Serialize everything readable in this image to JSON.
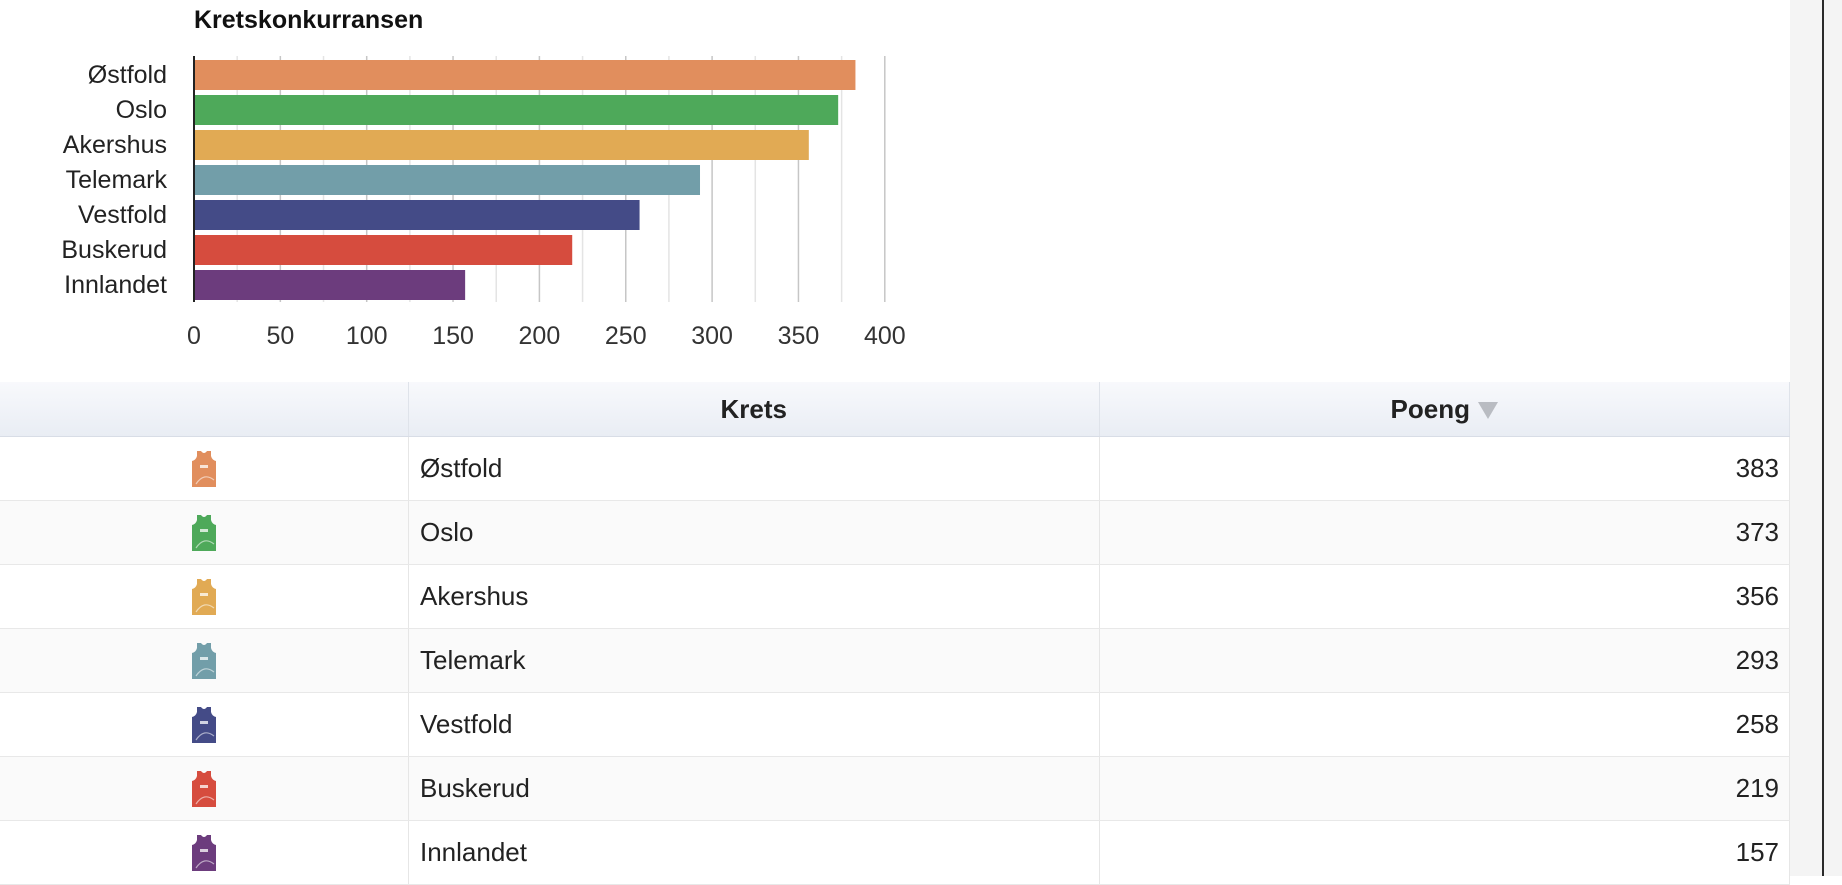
{
  "chart_data": {
    "type": "bar",
    "orientation": "horizontal",
    "title": "Kretskonkurransen",
    "categories": [
      "Østfold",
      "Oslo",
      "Akershus",
      "Telemark",
      "Vestfold",
      "Buskerud",
      "Innlandet"
    ],
    "values": [
      383,
      373,
      356,
      293,
      258,
      219,
      157
    ],
    "colors": [
      "#e18e5d",
      "#4ea95a",
      "#e1aa54",
      "#729ea9",
      "#444b87",
      "#d64c3e",
      "#6c3c7d"
    ],
    "xlim": [
      0,
      400
    ],
    "xticks": [
      0,
      50,
      100,
      150,
      200,
      250,
      300,
      350,
      400
    ],
    "grid": true,
    "xlabel": "",
    "ylabel": ""
  },
  "table": {
    "headers": {
      "icon": "",
      "name": "Krets",
      "points": "Poeng"
    },
    "sort_indicator": "descending",
    "rows": [
      {
        "name": "Østfold",
        "points": "383",
        "icon": "jersey-icon",
        "color": "#e18e5d"
      },
      {
        "name": "Oslo",
        "points": "373",
        "icon": "jersey-icon",
        "color": "#4ea95a"
      },
      {
        "name": "Akershus",
        "points": "356",
        "icon": "jersey-icon",
        "color": "#e1aa54"
      },
      {
        "name": "Telemark",
        "points": "293",
        "icon": "jersey-icon",
        "color": "#729ea9"
      },
      {
        "name": "Vestfold",
        "points": "258",
        "icon": "jersey-icon",
        "color": "#444b87"
      },
      {
        "name": "Buskerud",
        "points": "219",
        "icon": "jersey-icon",
        "color": "#d64c3e"
      },
      {
        "name": "Innlandet",
        "points": "157",
        "icon": "jersey-icon",
        "color": "#6c3c7d"
      }
    ]
  }
}
